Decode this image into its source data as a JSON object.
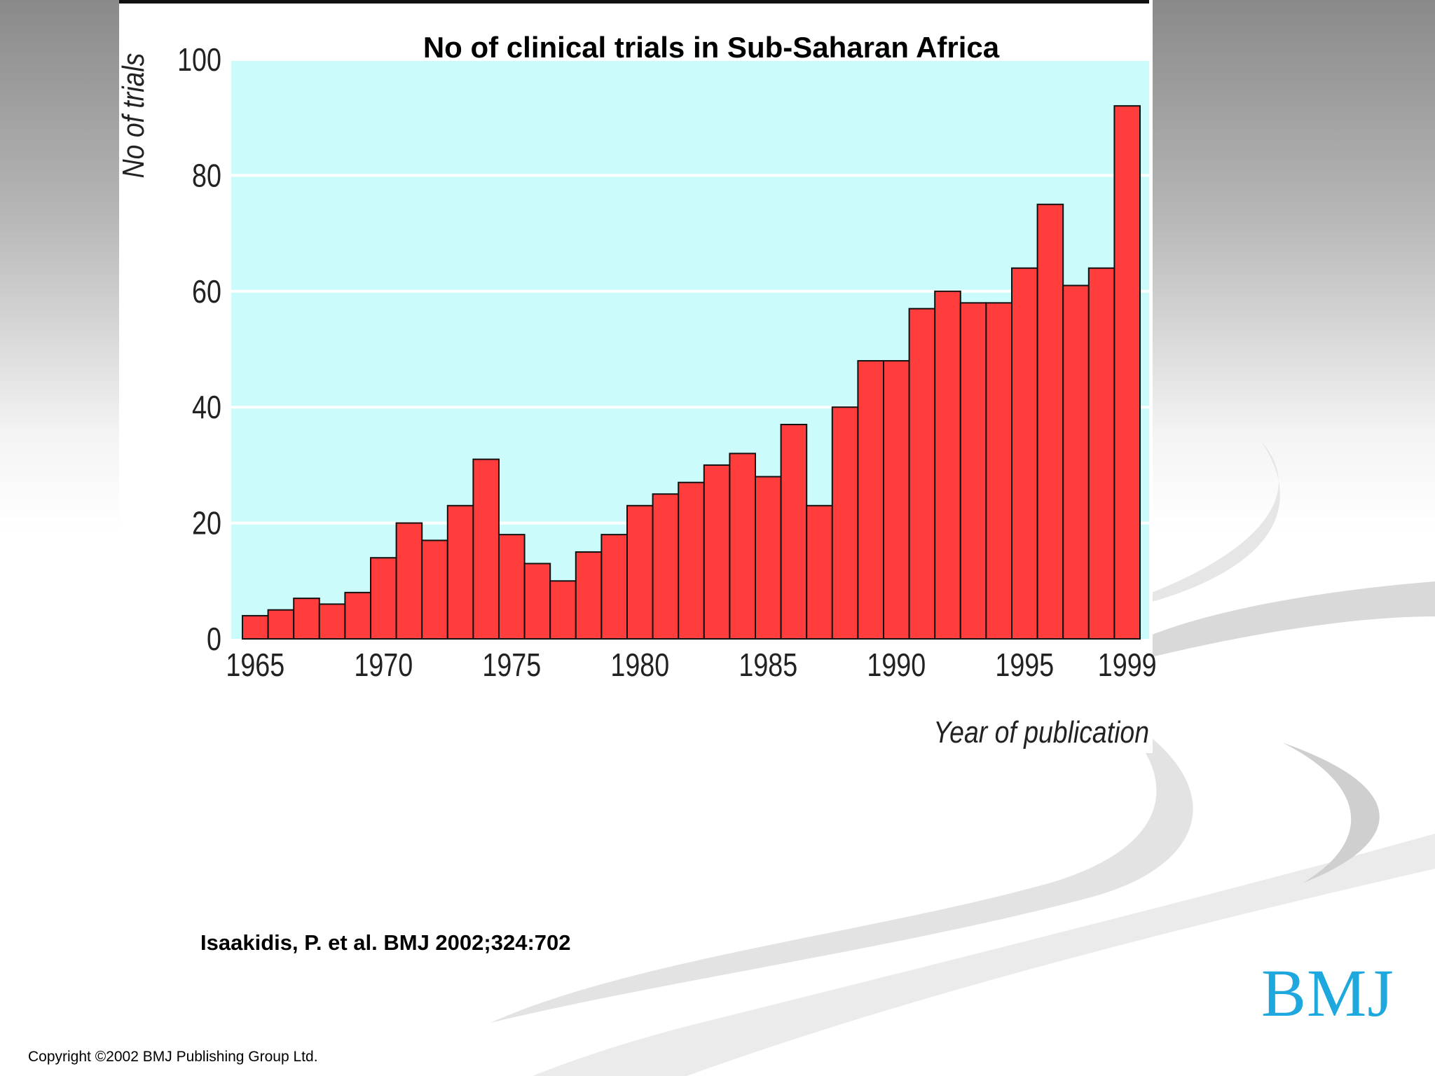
{
  "slide": {
    "title": "No of clinical trials in Sub-Saharan Africa",
    "citation": "Isaakidis, P. et al. BMJ 2002;324:702",
    "copyright": "Copyright ©2002 BMJ Publishing Group Ltd.",
    "logo_text": "BMJ"
  },
  "colors": {
    "plot_background": "#ccfbfb",
    "bar_fill": "#ff3d3d",
    "bar_stroke": "#111111",
    "gridline": "#ffffff",
    "logo": "#1fa8dd"
  },
  "chart_data": {
    "type": "bar",
    "xlabel": "Year of publication",
    "ylabel": "No of trials",
    "ylim": [
      0,
      100
    ],
    "yticks": [
      0,
      20,
      40,
      60,
      80,
      100
    ],
    "xtick_labels": [
      "1965",
      "1970",
      "1975",
      "1980",
      "1985",
      "1990",
      "1995",
      "1999"
    ],
    "grid": "horizontal",
    "categories": [
      1965,
      1966,
      1967,
      1968,
      1969,
      1970,
      1971,
      1972,
      1973,
      1974,
      1975,
      1976,
      1977,
      1978,
      1979,
      1980,
      1981,
      1982,
      1983,
      1984,
      1985,
      1986,
      1987,
      1988,
      1989,
      1990,
      1991,
      1992,
      1993,
      1994,
      1995,
      1996,
      1997,
      1998,
      1999
    ],
    "values": [
      4,
      5,
      7,
      6,
      8,
      14,
      20,
      17,
      23,
      31,
      18,
      13,
      10,
      15,
      18,
      23,
      25,
      27,
      30,
      32,
      28,
      37,
      23,
      40,
      48,
      48,
      57,
      60,
      58,
      58,
      64,
      75,
      61,
      64,
      92
    ]
  }
}
